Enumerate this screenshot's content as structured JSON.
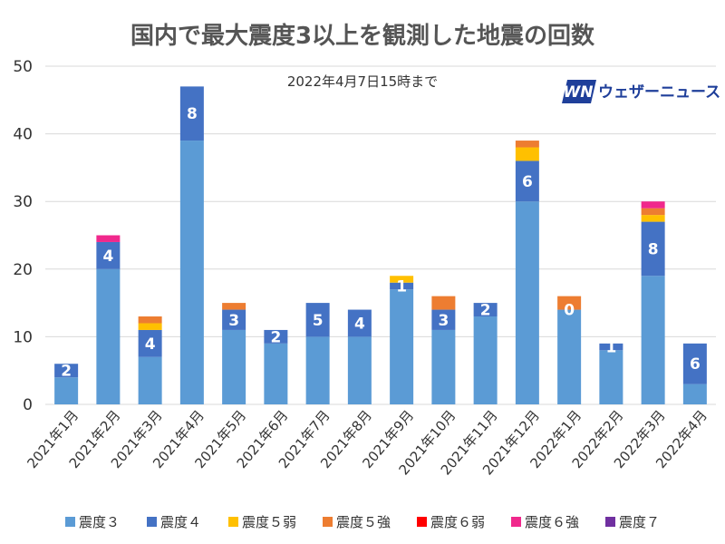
{
  "chart_data": {
    "type": "bar",
    "stacked": true,
    "title": "国内で最大震度3以上を観測した地震の回数",
    "subtitle": "2022年4月7日15時まで",
    "brand": {
      "mark": "WN",
      "name": "ウェザーニュース",
      "color": "#1f3f9a"
    },
    "ylim": [
      0,
      50
    ],
    "yticks": [
      0,
      10,
      20,
      30,
      40,
      50
    ],
    "categories": [
      "2021年1月",
      "2021年2月",
      "2021年3月",
      "2021年4月",
      "2021年5月",
      "2021年6月",
      "2021年7月",
      "2021年8月",
      "2021年9月",
      "2021年10月",
      "2021年11月",
      "2021年12月",
      "2022年1月",
      "2022年2月",
      "2022年3月",
      "2022年4月"
    ],
    "series": [
      {
        "name": "震度３",
        "color": "#5b9bd5",
        "values": [
          4,
          20,
          7,
          39,
          11,
          9,
          10,
          10,
          17,
          11,
          13,
          30,
          14,
          8,
          19,
          3
        ]
      },
      {
        "name": "震度４",
        "color": "#4472c4",
        "values": [
          2,
          4,
          4,
          8,
          3,
          2,
          5,
          4,
          1,
          3,
          2,
          6,
          0,
          1,
          8,
          6
        ]
      },
      {
        "name": "震度５弱",
        "color": "#ffc000",
        "values": [
          0,
          0,
          1,
          0,
          0,
          0,
          0,
          0,
          1,
          0,
          0,
          2,
          0,
          0,
          1,
          0
        ]
      },
      {
        "name": "震度５強",
        "color": "#ed7d31",
        "values": [
          0,
          0,
          1,
          0,
          1,
          0,
          0,
          0,
          0,
          2,
          0,
          1,
          2,
          0,
          1,
          0
        ]
      },
      {
        "name": "震度６弱",
        "color": "#ff0000",
        "values": [
          0,
          0,
          0,
          0,
          0,
          0,
          0,
          0,
          0,
          0,
          0,
          0,
          0,
          0,
          0,
          0
        ]
      },
      {
        "name": "震度６強",
        "color": "#f0288c",
        "values": [
          0,
          1,
          0,
          0,
          0,
          0,
          0,
          0,
          0,
          0,
          0,
          0,
          0,
          0,
          1,
          0
        ]
      },
      {
        "name": "震度７",
        "color": "#7030a0",
        "values": [
          0,
          0,
          0,
          0,
          0,
          0,
          0,
          0,
          0,
          0,
          0,
          0,
          0,
          0,
          0,
          0
        ]
      }
    ],
    "data_labels": {
      "series": "震度４",
      "values": [
        2,
        4,
        4,
        8,
        3,
        2,
        5,
        4,
        1,
        3,
        2,
        6,
        0,
        1,
        8,
        6
      ]
    },
    "grid": true,
    "legend": "bottom"
  }
}
